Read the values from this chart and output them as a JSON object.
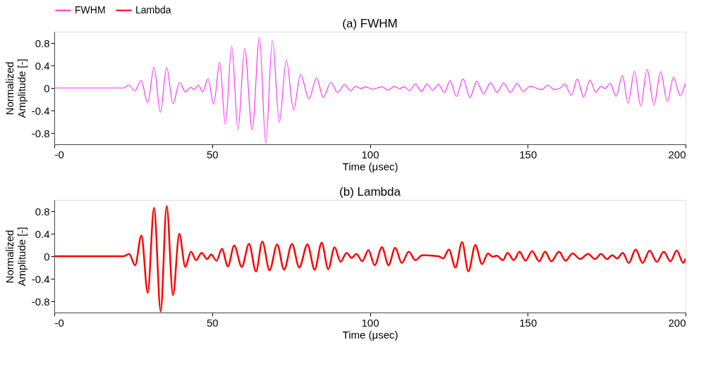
{
  "chart_data": [
    {
      "type": "line",
      "title": "(a) FWHM",
      "xlabel": "Time (μsec)",
      "ylabel": "Normalized Amplitude [-]",
      "xlim": [
        0,
        200
      ],
      "xticks": [
        {
          "value": 0,
          "label": "-0"
        },
        50,
        100,
        150,
        200
      ],
      "ylim": [
        -1,
        1
      ],
      "yticks": [
        -0.8,
        -0.4,
        0,
        0.4,
        0.8
      ],
      "legend": "top left",
      "marker": "none",
      "line_style": "solid",
      "x": [
        0,
        10,
        20,
        22,
        23.5,
        25.5,
        27.5,
        29.6,
        31.6,
        33.6,
        35.6,
        37.6,
        39.7,
        41.5,
        43.3,
        44.2,
        45.7,
        47.0,
        48.7,
        50.5,
        52.4,
        54.2,
        56.2,
        58.2,
        60.3,
        62.7,
        65.0,
        67.0,
        69.1,
        71.3,
        73.5,
        75.8,
        78.0,
        80.7,
        83.1,
        85.2,
        87.6,
        89.8,
        91.9,
        93.9,
        95.5,
        97.1,
        98.6,
        100.8,
        103.8,
        105.9,
        107.6,
        109.4,
        110.9,
        112.6,
        114.4,
        116.3,
        118.1,
        119.9,
        121.7,
        123.6,
        125.4,
        127.4,
        129.5,
        131.7,
        133.8,
        136.0,
        138.2,
        140.3,
        142.4,
        144.5,
        146.6,
        148.6,
        150.6,
        154.5,
        156.3,
        158.4,
        160.3,
        161.7,
        163.8,
        165.7,
        167.7,
        169.7,
        171.6,
        173.1,
        174.5,
        176.1,
        178.0,
        180.0,
        181.8,
        183.8,
        185.8,
        187.8,
        190.0,
        192.1,
        194.2,
        196.2,
        198.3,
        199.9
      ],
      "series": [
        {
          "name": "FWHM",
          "color": "#ff33ff",
          "values": [
            0,
            0,
            0,
            0,
            0.05,
            -0.05,
            0.13,
            -0.26,
            0.37,
            -0.43,
            0.37,
            -0.28,
            0.1,
            -0.07,
            0.01,
            -0.03,
            0.05,
            -0.07,
            0.16,
            -0.29,
            0.46,
            -0.65,
            0.75,
            -0.74,
            0.7,
            -0.74,
            0.9,
            -0.98,
            0.85,
            -0.61,
            0.5,
            -0.39,
            0.24,
            -0.19,
            0.18,
            -0.17,
            0.1,
            -0.08,
            0.06,
            -0.05,
            0.03,
            -0.01,
            0.02,
            -0.02,
            0.02,
            -0.04,
            0.03,
            -0.01,
            0.02,
            -0.05,
            0.07,
            -0.06,
            0.07,
            -0.04,
            0.06,
            -0.08,
            0.13,
            -0.15,
            0.16,
            -0.17,
            0.12,
            -0.1,
            0.09,
            -0.08,
            0.09,
            -0.08,
            0.08,
            -0.06,
            0.03,
            -0.03,
            0.05,
            -0.03,
            0.0,
            0.07,
            -0.13,
            0.16,
            -0.16,
            0.14,
            -0.08,
            0.03,
            -0.01,
            0.08,
            -0.15,
            0.22,
            -0.27,
            0.3,
            -0.32,
            0.33,
            -0.3,
            0.29,
            -0.24,
            0.19,
            -0.14,
            0.08
          ]
        }
      ]
    },
    {
      "type": "line",
      "title": "(b) Lambda",
      "xlabel": "Time (μsec)",
      "ylabel": "Normalized Amplitude [-]",
      "xlim": [
        0,
        200
      ],
      "xticks": [
        {
          "value": 0,
          "label": "-0"
        },
        50,
        100,
        150,
        200
      ],
      "ylim": [
        -1,
        1
      ],
      "yticks": [
        -0.8,
        -0.4,
        0,
        0.4,
        0.8
      ],
      "legend": "top left",
      "marker": "none",
      "line_style": "solid",
      "x": [
        0,
        10,
        20,
        22.0,
        23.7,
        25.6,
        27.6,
        29.6,
        31.6,
        33.7,
        35.6,
        37.6,
        39.6,
        41.5,
        43.3,
        44.9,
        46.7,
        48.4,
        49.7,
        51.4,
        53.1,
        55.0,
        57.0,
        59.4,
        61.7,
        63.9,
        65.9,
        68.2,
        70.6,
        72.8,
        75.3,
        77.6,
        80.2,
        82.5,
        84.7,
        86.8,
        88.8,
        90.7,
        92.6,
        94.2,
        95.7,
        97.6,
        99.5,
        101.5,
        103.8,
        105.9,
        108.0,
        110.1,
        112.3,
        114.4,
        116.6,
        121.7,
        123.2,
        125.0,
        127.1,
        129.2,
        131.2,
        133.4,
        135.5,
        137.4,
        138.9,
        140.2,
        142.1,
        143.6,
        145.6,
        147.4,
        149.3,
        151.4,
        153.6,
        155.5,
        157.5,
        159.9,
        162.0,
        164.2,
        166.6,
        169.1,
        171.3,
        173.2,
        175.1,
        176.8,
        178.3,
        180.1,
        182.0,
        184.2,
        186.4,
        188.6,
        190.9,
        193.1,
        195.2,
        197.2,
        199.3,
        200
      ],
      "series": [
        {
          "name": "Lambda",
          "color": "#ff0000",
          "values": [
            0,
            0,
            0,
            0,
            0.04,
            -0.16,
            0.37,
            -0.65,
            0.86,
            -0.98,
            0.89,
            -0.69,
            0.4,
            -0.19,
            0.08,
            -0.07,
            0.06,
            -0.05,
            0.03,
            -0.08,
            0.13,
            -0.18,
            0.19,
            -0.19,
            0.22,
            -0.27,
            0.26,
            -0.25,
            0.21,
            -0.24,
            0.22,
            -0.2,
            0.21,
            -0.24,
            0.24,
            -0.23,
            0.16,
            -0.1,
            0.06,
            -0.03,
            0.04,
            -0.09,
            0.11,
            -0.16,
            0.16,
            -0.16,
            0.15,
            -0.12,
            0.08,
            -0.07,
            0.02,
            0.0,
            -0.04,
            0.12,
            -0.2,
            0.25,
            -0.27,
            0.2,
            -0.14,
            0.05,
            -0.01,
            0.01,
            -0.07,
            0.06,
            -0.07,
            0.08,
            -0.08,
            0.09,
            -0.09,
            0.08,
            -0.09,
            0.08,
            -0.08,
            0.05,
            -0.05,
            0.04,
            -0.05,
            0.04,
            -0.05,
            0.02,
            -0.04,
            0.06,
            -0.12,
            0.12,
            -0.12,
            0.1,
            -0.1,
            0.08,
            -0.09,
            0.1,
            -0.12,
            -0.04
          ]
        }
      ]
    }
  ]
}
